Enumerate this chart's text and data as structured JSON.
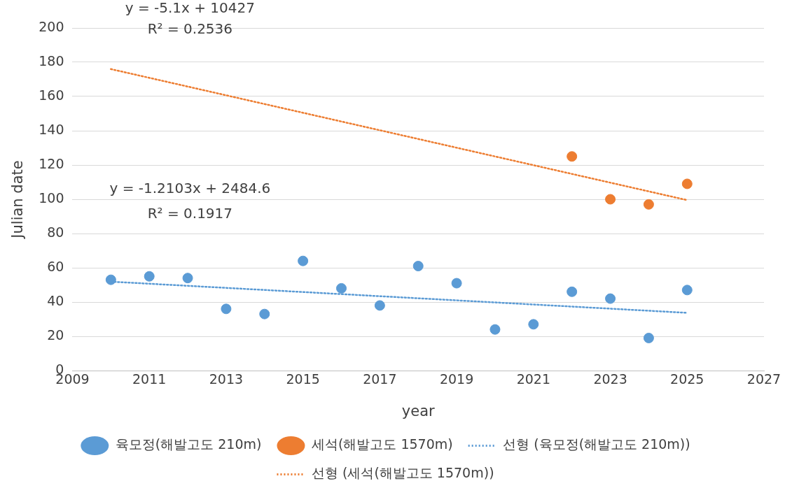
{
  "chart_data": {
    "type": "scatter",
    "xlabel": "year",
    "ylabel": "Julian date",
    "x": [
      2010,
      2011,
      2012,
      2013,
      2014,
      2015,
      2016,
      2017,
      2018,
      2019,
      2020,
      2021,
      2022,
      2023,
      2024,
      2025
    ],
    "series": [
      {
        "name": "육모정(해발고도 210m)",
        "color": "#5b9bd5",
        "values": [
          53,
          55,
          54,
          36,
          33,
          64,
          48,
          38,
          61,
          51,
          24,
          27,
          46,
          42,
          19,
          47
        ]
      },
      {
        "name": "세석(해발고도 1570m)",
        "color": "#ed7d31",
        "x": [
          2022,
          2023,
          2024,
          2025
        ],
        "values": [
          125,
          100,
          97,
          109
        ]
      },
      {
        "name": "선형 (육모정(해발고도 210m))",
        "type": "line",
        "line_style": "dotted",
        "marker": "none",
        "color": "#5b9bd5",
        "x": [
          2010,
          2025
        ],
        "values": [
          51.9,
          33.7
        ]
      },
      {
        "name": "선형 (세석(해발고도 1570m))",
        "type": "line",
        "line_style": "dotted",
        "marker": "none",
        "color": "#ed7d31",
        "x": [
          2010,
          2025
        ],
        "values": [
          176,
          99.5
        ]
      }
    ],
    "marker": "circle",
    "xlim": [
      2009,
      2027
    ],
    "xticks": [
      2009,
      2011,
      2013,
      2015,
      2017,
      2019,
      2021,
      2023,
      2025,
      2027
    ],
    "ylim": [
      0,
      200
    ],
    "yticks": [
      0,
      20,
      40,
      60,
      80,
      100,
      120,
      140,
      160,
      180,
      200
    ],
    "grid": "y",
    "legend": "bottom",
    "annotations": [
      "y = -5.1x + 10427",
      "R² = 0.2536",
      "y = -1.2103x + 2484.6",
      "R² = 0.1917"
    ]
  }
}
